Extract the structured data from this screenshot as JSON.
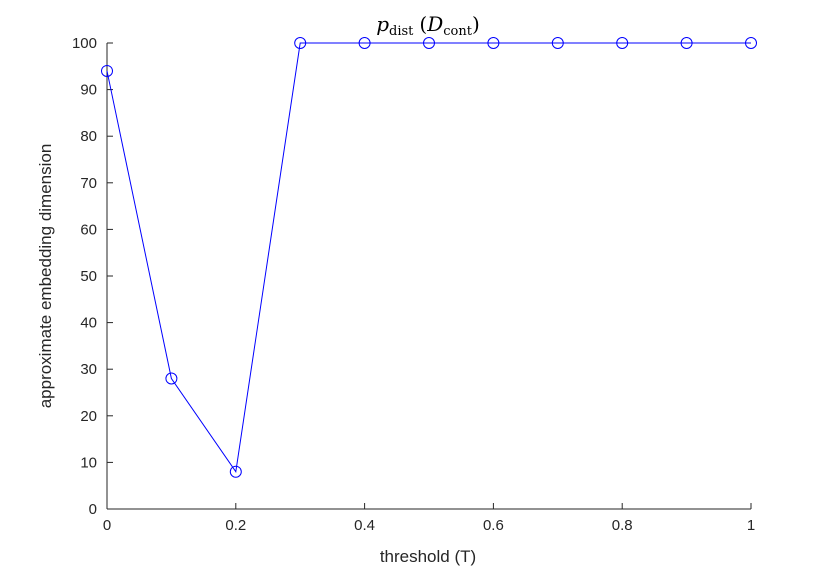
{
  "chart_data": {
    "type": "line",
    "title": {
      "p": "p",
      "p_sub": "dist",
      "d": "D",
      "d_sub": "cont"
    },
    "xlabel": "threshold (T)",
    "ylabel": "approximate embedding dimension",
    "xlim": [
      0,
      1
    ],
    "ylim": [
      0,
      100
    ],
    "xticks": [
      0,
      0.2,
      0.4,
      0.6,
      0.8,
      1
    ],
    "xtick_labels": [
      "0",
      "0.2",
      "0.4",
      "0.6",
      "0.8",
      "1"
    ],
    "yticks": [
      0,
      10,
      20,
      30,
      40,
      50,
      60,
      70,
      80,
      90,
      100
    ],
    "ytick_labels": [
      "0",
      "10",
      "20",
      "30",
      "40",
      "50",
      "60",
      "70",
      "80",
      "90",
      "100"
    ],
    "grid": false,
    "series": [
      {
        "color": "#0000ff",
        "marker": "circle",
        "x": [
          0,
          0.1,
          0.2,
          0.3,
          0.4,
          0.5,
          0.6,
          0.7,
          0.8,
          0.9,
          1.0
        ],
        "y": [
          94,
          28,
          8,
          100,
          100,
          100,
          100,
          100,
          100,
          100,
          100
        ]
      }
    ]
  }
}
